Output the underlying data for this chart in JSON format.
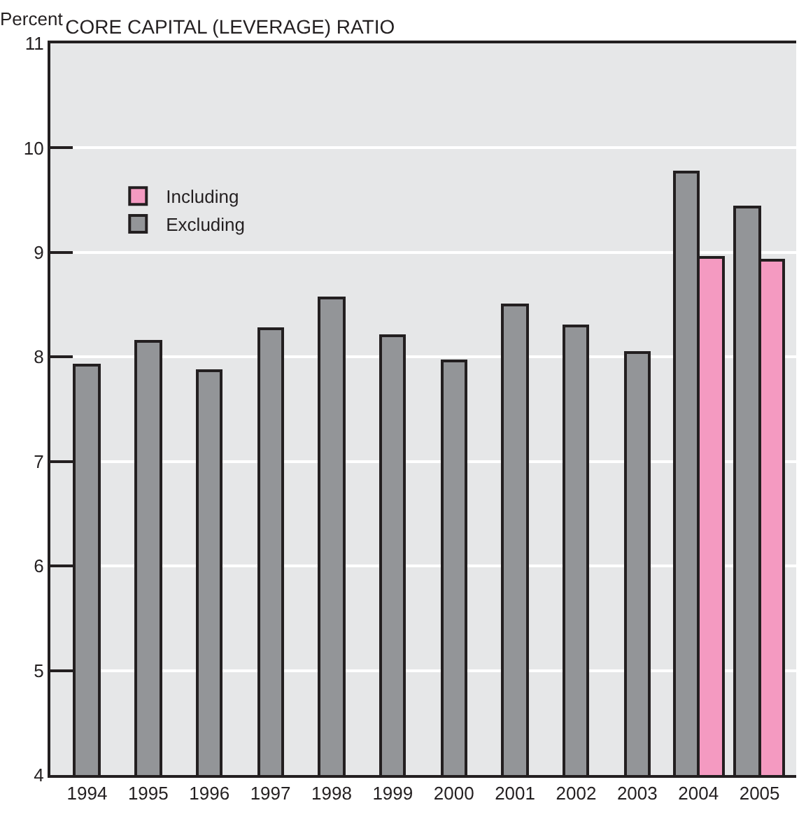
{
  "chart_data": {
    "type": "bar",
    "title": "CORE CAPITAL (LEVERAGE) RATIO",
    "ylabel": "Percent",
    "categories": [
      "1994",
      "1995",
      "1996",
      "1997",
      "1998",
      "1999",
      "2000",
      "2001",
      "2002",
      "2003",
      "2004",
      "2005"
    ],
    "series": [
      {
        "name": "Excluding",
        "color": "#939598",
        "values": [
          7.92,
          8.15,
          7.87,
          8.27,
          8.56,
          8.2,
          7.96,
          8.5,
          8.3,
          8.04,
          9.77,
          9.44
        ]
      },
      {
        "name": "Including",
        "color": "#f49ac1",
        "values": [
          null,
          null,
          null,
          null,
          null,
          null,
          null,
          null,
          null,
          null,
          8.95,
          8.93
        ]
      }
    ],
    "ylim": [
      4,
      11
    ],
    "yticks": [
      4,
      5,
      6,
      7,
      8,
      9,
      10,
      11
    ],
    "grid": "y",
    "legend": "top left"
  }
}
